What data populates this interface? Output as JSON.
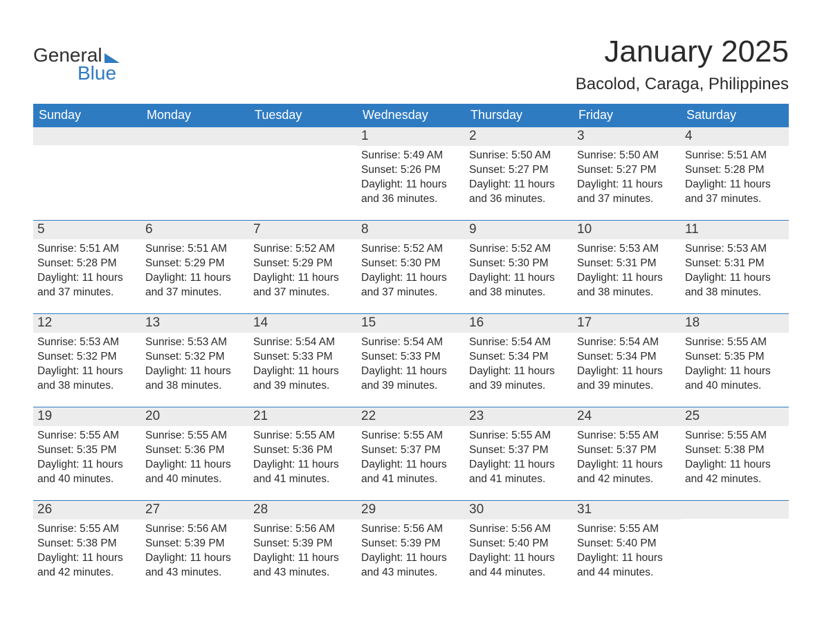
{
  "brand": {
    "text_general": "General",
    "text_blue": "Blue",
    "triangle_color": "#2f7bc2"
  },
  "header": {
    "month_title": "January 2025",
    "location": "Bacolod, Caraga, Philippines"
  },
  "colors": {
    "header_bg": "#2f7bc2",
    "header_text": "#ffffff",
    "daynum_bg": "#ececec",
    "text": "#2a2a2a",
    "rule": "#2f7bc2",
    "page_bg": "#ffffff"
  },
  "fonts": {
    "title_pt": 44,
    "location_pt": 24,
    "weekday_pt": 18,
    "daynum_pt": 19,
    "body_pt": 15.5
  },
  "weekdays": [
    "Sunday",
    "Monday",
    "Tuesday",
    "Wednesday",
    "Thursday",
    "Friday",
    "Saturday"
  ],
  "weeks": [
    [
      null,
      null,
      null,
      {
        "d": "1",
        "sunrise": "5:49 AM",
        "sunset": "5:26 PM",
        "daylight": "11 hours and 36 minutes."
      },
      {
        "d": "2",
        "sunrise": "5:50 AM",
        "sunset": "5:27 PM",
        "daylight": "11 hours and 36 minutes."
      },
      {
        "d": "3",
        "sunrise": "5:50 AM",
        "sunset": "5:27 PM",
        "daylight": "11 hours and 37 minutes."
      },
      {
        "d": "4",
        "sunrise": "5:51 AM",
        "sunset": "5:28 PM",
        "daylight": "11 hours and 37 minutes."
      }
    ],
    [
      {
        "d": "5",
        "sunrise": "5:51 AM",
        "sunset": "5:28 PM",
        "daylight": "11 hours and 37 minutes."
      },
      {
        "d": "6",
        "sunrise": "5:51 AM",
        "sunset": "5:29 PM",
        "daylight": "11 hours and 37 minutes."
      },
      {
        "d": "7",
        "sunrise": "5:52 AM",
        "sunset": "5:29 PM",
        "daylight": "11 hours and 37 minutes."
      },
      {
        "d": "8",
        "sunrise": "5:52 AM",
        "sunset": "5:30 PM",
        "daylight": "11 hours and 37 minutes."
      },
      {
        "d": "9",
        "sunrise": "5:52 AM",
        "sunset": "5:30 PM",
        "daylight": "11 hours and 38 minutes."
      },
      {
        "d": "10",
        "sunrise": "5:53 AM",
        "sunset": "5:31 PM",
        "daylight": "11 hours and 38 minutes."
      },
      {
        "d": "11",
        "sunrise": "5:53 AM",
        "sunset": "5:31 PM",
        "daylight": "11 hours and 38 minutes."
      }
    ],
    [
      {
        "d": "12",
        "sunrise": "5:53 AM",
        "sunset": "5:32 PM",
        "daylight": "11 hours and 38 minutes."
      },
      {
        "d": "13",
        "sunrise": "5:53 AM",
        "sunset": "5:32 PM",
        "daylight": "11 hours and 38 minutes."
      },
      {
        "d": "14",
        "sunrise": "5:54 AM",
        "sunset": "5:33 PM",
        "daylight": "11 hours and 39 minutes."
      },
      {
        "d": "15",
        "sunrise": "5:54 AM",
        "sunset": "5:33 PM",
        "daylight": "11 hours and 39 minutes."
      },
      {
        "d": "16",
        "sunrise": "5:54 AM",
        "sunset": "5:34 PM",
        "daylight": "11 hours and 39 minutes."
      },
      {
        "d": "17",
        "sunrise": "5:54 AM",
        "sunset": "5:34 PM",
        "daylight": "11 hours and 39 minutes."
      },
      {
        "d": "18",
        "sunrise": "5:55 AM",
        "sunset": "5:35 PM",
        "daylight": "11 hours and 40 minutes."
      }
    ],
    [
      {
        "d": "19",
        "sunrise": "5:55 AM",
        "sunset": "5:35 PM",
        "daylight": "11 hours and 40 minutes."
      },
      {
        "d": "20",
        "sunrise": "5:55 AM",
        "sunset": "5:36 PM",
        "daylight": "11 hours and 40 minutes."
      },
      {
        "d": "21",
        "sunrise": "5:55 AM",
        "sunset": "5:36 PM",
        "daylight": "11 hours and 41 minutes."
      },
      {
        "d": "22",
        "sunrise": "5:55 AM",
        "sunset": "5:37 PM",
        "daylight": "11 hours and 41 minutes."
      },
      {
        "d": "23",
        "sunrise": "5:55 AM",
        "sunset": "5:37 PM",
        "daylight": "11 hours and 41 minutes."
      },
      {
        "d": "24",
        "sunrise": "5:55 AM",
        "sunset": "5:37 PM",
        "daylight": "11 hours and 42 minutes."
      },
      {
        "d": "25",
        "sunrise": "5:55 AM",
        "sunset": "5:38 PM",
        "daylight": "11 hours and 42 minutes."
      }
    ],
    [
      {
        "d": "26",
        "sunrise": "5:55 AM",
        "sunset": "5:38 PM",
        "daylight": "11 hours and 42 minutes."
      },
      {
        "d": "27",
        "sunrise": "5:56 AM",
        "sunset": "5:39 PM",
        "daylight": "11 hours and 43 minutes."
      },
      {
        "d": "28",
        "sunrise": "5:56 AM",
        "sunset": "5:39 PM",
        "daylight": "11 hours and 43 minutes."
      },
      {
        "d": "29",
        "sunrise": "5:56 AM",
        "sunset": "5:39 PM",
        "daylight": "11 hours and 43 minutes."
      },
      {
        "d": "30",
        "sunrise": "5:56 AM",
        "sunset": "5:40 PM",
        "daylight": "11 hours and 44 minutes."
      },
      {
        "d": "31",
        "sunrise": "5:55 AM",
        "sunset": "5:40 PM",
        "daylight": "11 hours and 44 minutes."
      },
      null
    ]
  ],
  "labels": {
    "sunrise_prefix": "Sunrise: ",
    "sunset_prefix": "Sunset: ",
    "daylight_prefix": "Daylight: "
  }
}
